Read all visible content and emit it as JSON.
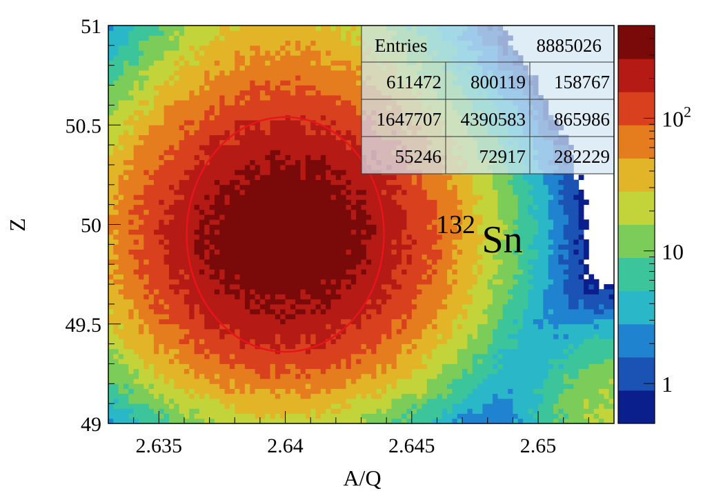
{
  "chart_data": {
    "type": "heatmap",
    "xlabel": "A/Q",
    "ylabel": "Z",
    "xlim": [
      2.633,
      2.653
    ],
    "ylim": [
      49,
      51
    ],
    "x_ticks": [
      {
        "value": 2.635,
        "label": "2.635"
      },
      {
        "value": 2.64,
        "label": "2.64"
      },
      {
        "value": 2.645,
        "label": "2.645"
      },
      {
        "value": 2.65,
        "label": "2.65"
      }
    ],
    "y_ticks": [
      {
        "value": 49,
        "label": "49"
      },
      {
        "value": 49.5,
        "label": "49.5"
      },
      {
        "value": 50,
        "label": "50"
      },
      {
        "value": 50.5,
        "label": "50.5"
      },
      {
        "value": 51,
        "label": "51"
      }
    ],
    "z_scale": "log",
    "z_range": [
      0.5,
      500
    ],
    "z_ticks": [
      {
        "value": 1,
        "label": "1",
        "sup": ""
      },
      {
        "value": 10,
        "label": "10",
        "sup": ""
      },
      {
        "value": 100,
        "label": "10",
        "sup": "2"
      }
    ],
    "colormap": [
      "#0b1f8c",
      "#1b53b5",
      "#1f83d0",
      "#2ab8c8",
      "#3cc49a",
      "#7bcc58",
      "#c2d43a",
      "#e2b427",
      "#e57d1f",
      "#d9411e",
      "#b51a14",
      "#7a0a0a"
    ],
    "peaks": [
      {
        "x": 2.64,
        "y": 49.94,
        "sx": 0.0033,
        "sy": 0.38,
        "peak": 450
      },
      {
        "x": 2.64,
        "y": 50.85,
        "sx": 0.0029,
        "sy": 0.32,
        "peak": 30
      },
      {
        "x": 2.6535,
        "y": 49.05,
        "sx": 0.0022,
        "sy": 0.24,
        "peak": 18
      }
    ],
    "gate": {
      "type": "ellipse",
      "cx": 2.64,
      "cy": 49.95,
      "rx": 0.0039,
      "ry": 0.59,
      "color": "#e8141b"
    },
    "annotation": {
      "mass": "132",
      "element": "Sn"
    },
    "stats": {
      "entries_label": "Entries",
      "entries_value": "8885026",
      "grid": [
        [
          "611472",
          "800119",
          "158767"
        ],
        [
          "1647707",
          "4390583",
          "865986"
        ],
        [
          "55246",
          "72917",
          "282229"
        ]
      ]
    }
  }
}
